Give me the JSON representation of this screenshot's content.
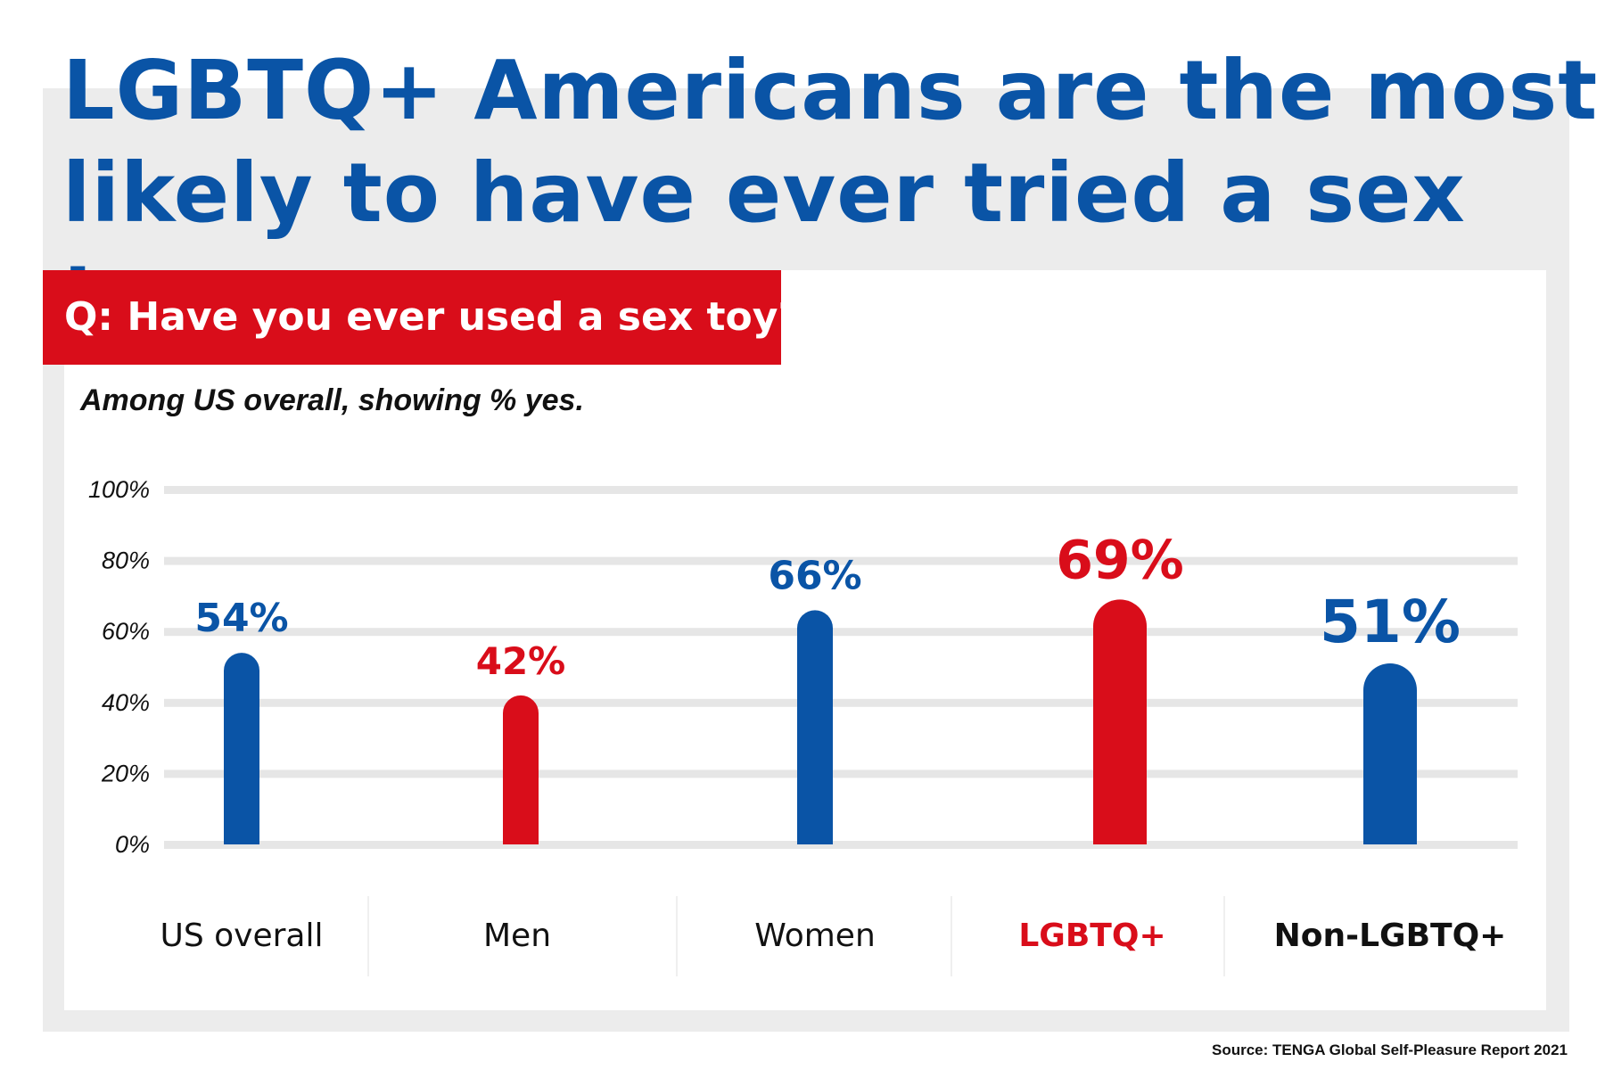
{
  "title_line1": "LGBTQ+ Americans are the most",
  "title_line2": "likely to have ever tried a sex toy.",
  "question": "Q: Have you ever used a sex toy?",
  "subtitle": "Among US overall, showing % yes.",
  "source": "Source: TENGA Global Self-Pleasure Report 2021",
  "colors": {
    "blue": "#0a54a6",
    "red": "#d90d1a",
    "panel_gray": "#ececec",
    "grid": "#e6e6e6"
  },
  "chart_data": {
    "type": "bar",
    "title": "",
    "xlabel": "",
    "ylabel": "",
    "ylim": [
      0,
      100
    ],
    "y_ticks": [
      "0%",
      "20%",
      "40%",
      "60%",
      "80%",
      "100%"
    ],
    "categories": [
      "US overall",
      "Men",
      "Women",
      "LGBTQ+",
      "Non-LGBTQ+"
    ],
    "values": [
      54,
      42,
      66,
      69,
      51
    ],
    "value_labels": [
      "54%",
      "42%",
      "66%",
      "69%",
      "51%"
    ],
    "bar_colors": [
      "#0a54a6",
      "#d90d1a",
      "#0a54a6",
      "#d90d1a",
      "#0a54a6"
    ],
    "category_label_colors": [
      "#111111",
      "#111111",
      "#111111",
      "#d90d1a",
      "#111111"
    ],
    "grid": true,
    "legend": "none"
  }
}
